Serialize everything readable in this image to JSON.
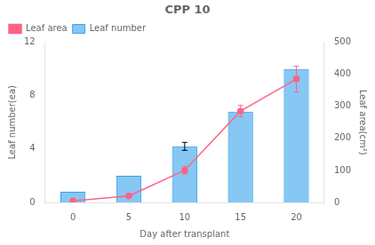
{
  "chart_data": {
    "type": "bar",
    "title": "CPP 10",
    "x": [
      0,
      5,
      10,
      15,
      20
    ],
    "xlabel": "Day after transplant",
    "ylabel": "Leaf number(ea)",
    "y2label": "Leaf area(cm²)",
    "series": [
      {
        "name": "Leaf number",
        "type": "bar",
        "values": [
          0.8,
          2.0,
          4.2,
          6.8,
          10.0
        ],
        "errors": [
          0.0,
          0.0,
          0.3,
          0.0,
          0.0
        ]
      },
      {
        "name": "Leaf area",
        "type": "line",
        "marker": "circle",
        "axis": "y2",
        "values": [
          5,
          20,
          100,
          285,
          385
        ],
        "errors": [
          3,
          5,
          12,
          18,
          40
        ]
      }
    ],
    "xlim": [
      -2.5,
      22.5
    ],
    "xticks": [
      0,
      5,
      10,
      15,
      20
    ],
    "ylim": [
      0,
      12
    ],
    "yticks": [
      0,
      4,
      8,
      12
    ],
    "y2lim": [
      0,
      500
    ],
    "y2ticks": [
      0,
      100,
      200,
      300,
      400,
      500
    ],
    "grid": false,
    "legend": "upper left"
  }
}
